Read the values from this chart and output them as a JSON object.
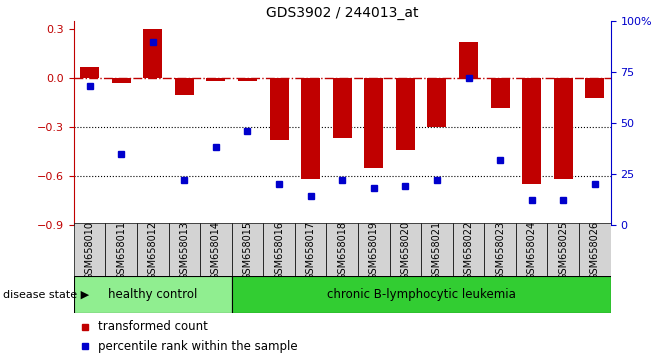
{
  "title": "GDS3902 / 244013_at",
  "samples": [
    "GSM658010",
    "GSM658011",
    "GSM658012",
    "GSM658013",
    "GSM658014",
    "GSM658015",
    "GSM658016",
    "GSM658017",
    "GSM658018",
    "GSM658019",
    "GSM658020",
    "GSM658021",
    "GSM658022",
    "GSM658023",
    "GSM658024",
    "GSM658025",
    "GSM658026"
  ],
  "bar_values": [
    0.07,
    -0.03,
    0.3,
    -0.1,
    -0.02,
    -0.02,
    -0.38,
    -0.62,
    -0.37,
    -0.55,
    -0.44,
    -0.3,
    0.22,
    -0.18,
    -0.65,
    -0.62,
    -0.12
  ],
  "percentile_values": [
    68,
    35,
    90,
    22,
    38,
    46,
    20,
    14,
    22,
    18,
    19,
    22,
    72,
    32,
    12,
    12,
    20
  ],
  "healthy_count": 5,
  "bar_color": "#c00000",
  "dot_color": "#0000cc",
  "dashed_line_color": "#c00000",
  "bg_color": "#ffffff",
  "ylim_left": [
    -0.9,
    0.35
  ],
  "ylim_right": [
    0,
    100
  ],
  "yticks_left": [
    -0.9,
    -0.6,
    -0.3,
    0.0,
    0.3
  ],
  "yticks_right": [
    0,
    25,
    50,
    75,
    100
  ],
  "healthy_label": "healthy control",
  "disease_label": "chronic B-lymphocytic leukemia",
  "legend1": "transformed count",
  "legend2": "percentile rank within the sample",
  "healthy_bg": "#90ee90",
  "disease_bg": "#32cd32",
  "sample_bg": "#d3d3d3",
  "disease_state_label": "disease state"
}
